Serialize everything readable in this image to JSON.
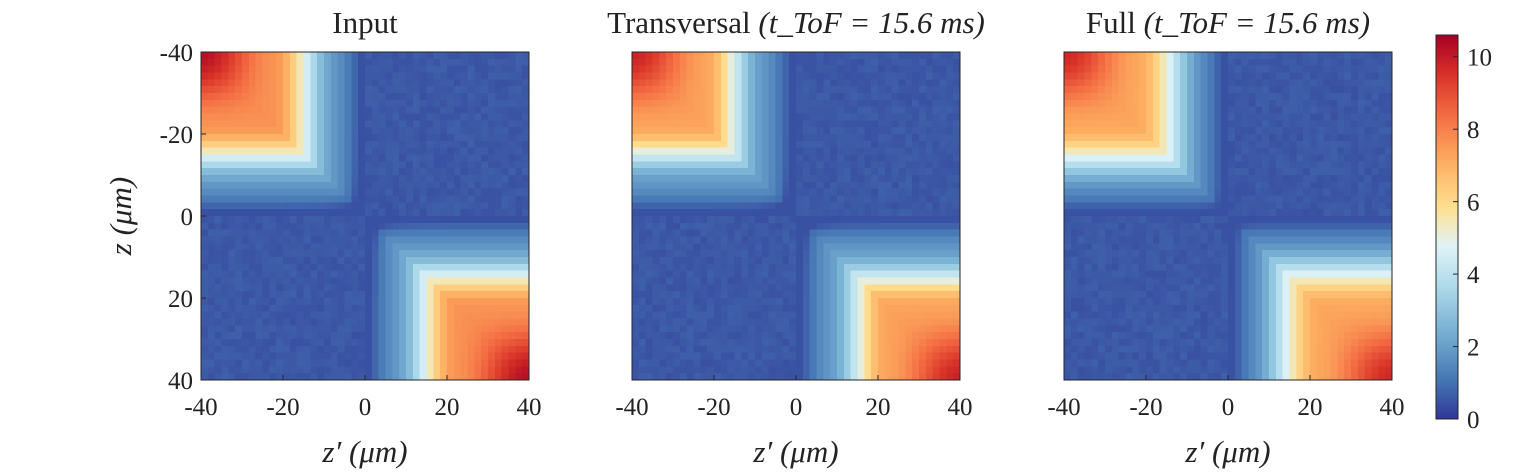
{
  "chart_data": {
    "type": "heatmap",
    "colormap": "RdYlBu reversed",
    "panels": [
      {
        "title": "Input",
        "title_math": "",
        "xlabel": "z′ (μm)",
        "ylabel": "z (μm)",
        "show_yticks": true,
        "show_xlabel": true,
        "pattern": {
          "peak_scale": 1.0,
          "cross_blur": 1.0,
          "edge_softness": 1.0
        }
      },
      {
        "title": "Transversal ",
        "title_math": "(t_ToF = 15.6 ms)",
        "xlabel": "z′ (μm)",
        "ylabel": "",
        "show_yticks": false,
        "show_xlabel": true,
        "pattern": {
          "peak_scale": 0.96,
          "cross_blur": 1.1,
          "edge_softness": 1.1
        }
      },
      {
        "title": "Full ",
        "title_math": "(t_ToF = 15.6 ms)",
        "xlabel": "z′ (μm)",
        "ylabel": "",
        "show_yticks": false,
        "show_xlabel": true,
        "pattern": {
          "peak_scale": 0.95,
          "cross_blur": 0.6,
          "edge_softness": 0.8
        }
      }
    ],
    "x_ticks": [
      "-40",
      "-20",
      "0",
      "20",
      "40"
    ],
    "y_ticks": [
      "-40",
      "-20",
      "0",
      "20",
      "40"
    ],
    "xlim": [
      -40,
      40
    ],
    "ylim": [
      -40,
      40
    ],
    "colorbar": {
      "ticks": [
        "0",
        "2",
        "4",
        "6",
        "8",
        "10"
      ],
      "range": [
        0,
        10.6
      ]
    }
  }
}
